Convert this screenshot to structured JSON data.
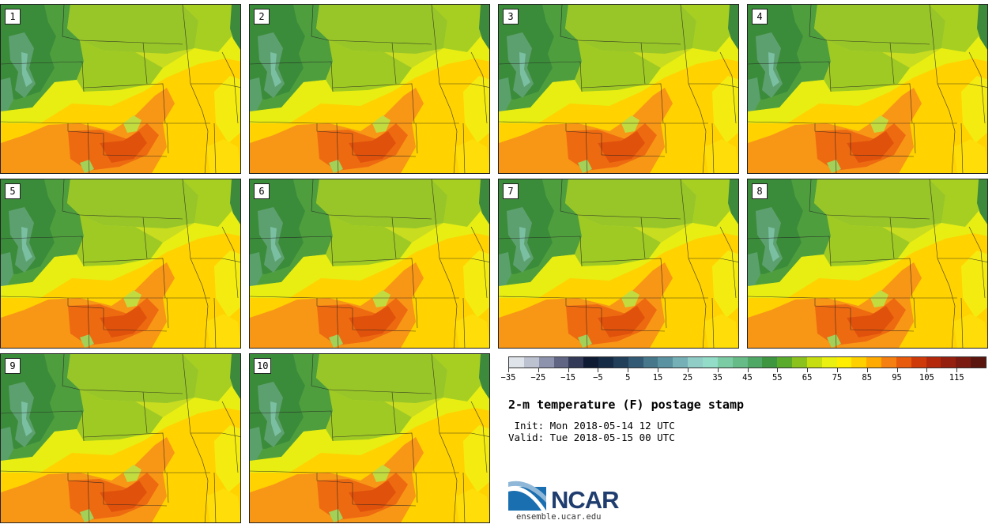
{
  "panels": [
    {
      "label": "1"
    },
    {
      "label": "2"
    },
    {
      "label": "3"
    },
    {
      "label": "4"
    },
    {
      "label": "5"
    },
    {
      "label": "6"
    },
    {
      "label": "7"
    },
    {
      "label": "8"
    },
    {
      "label": "9"
    },
    {
      "label": "10"
    }
  ],
  "colorbar": {
    "colors": [
      "#dfe3ea",
      "#bdc2d0",
      "#8d93ad",
      "#5f6582",
      "#333a58",
      "#0f1a33",
      "#152a45",
      "#223f5a",
      "#335a74",
      "#46778b",
      "#5b92a1",
      "#74b0b6",
      "#90cdc6",
      "#92dcc8",
      "#7bcca4",
      "#66bb86",
      "#4fa865",
      "#3f9641",
      "#5aaa2c",
      "#8cc21e",
      "#c6de10",
      "#eaf010",
      "#ffee00",
      "#ffd000",
      "#ffaa00",
      "#f57f10",
      "#e85a0c",
      "#cf3a0a",
      "#b4280c",
      "#962010",
      "#7a1a10",
      "#5a160e"
    ],
    "tick_labels": [
      "-35",
      "-25",
      "-15",
      "-5",
      "5",
      "15",
      "25",
      "35",
      "45",
      "55",
      "65",
      "75",
      "85",
      "95",
      "105",
      "115"
    ]
  },
  "title": "2-m temperature (F) postage stamp",
  "init_text": " Init: Mon 2018-05-14 12 UTC",
  "valid_text": "Valid: Tue 2018-05-15 00 UTC",
  "logo_text": "NCAR",
  "website": "ensemble.ucar.edu"
}
